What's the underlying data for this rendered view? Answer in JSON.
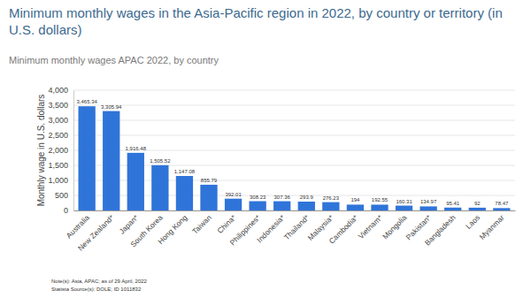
{
  "chart_data": {
    "type": "bar",
    "title": "Minimum monthly wages in the Asia-Pacific region in 2022, by country or territory (in U.S. dollars)",
    "subtitle": "Minimum monthly wages APAC 2022, by country",
    "y_label": "Monthly wage in U.S. dollars",
    "annotations": [
      "Note(s): Asia, APAC; as of 29 April, 2022",
      "Statista Source(s): DOLE; ID 1011832"
    ],
    "categories": [
      "Australia",
      "New Zealand*",
      "Japan*",
      "South Korea",
      "Hong Kong",
      "Taiwan",
      "China*",
      "Philippines*",
      "Indonesia*",
      "Thailand*",
      "Malaysia*",
      "Cambodia*",
      "Vietnam*",
      "Mongolia",
      "Pakistan*",
      "Bangladesh",
      "Laos",
      "Myanmar"
    ],
    "values": [
      3465.34,
      3305.94,
      1916.48,
      1505.52,
      1147.08,
      855.79,
      392.01,
      308.23,
      307.36,
      293.9,
      276.23,
      194,
      192.55,
      160.31,
      134.97,
      95.41,
      92,
      78.47
    ],
    "value_labels": [
      "3,465.34",
      "3,305.94",
      "1,916.48",
      "1,505.52",
      "1,147.08",
      "855.79",
      "392.01",
      "308.23",
      "307.36",
      "293.9",
      "276.23",
      "194",
      "192.55",
      "160.31",
      "134.97",
      "95.41",
      "92",
      "78.47"
    ],
    "color": "#2f74d9",
    "ylim": [
      0,
      4000
    ],
    "yticks": [
      0,
      500,
      {
        "value": 1000,
        "label": "1,000"
      },
      {
        "value": 1500,
        "label": "1,500"
      },
      {
        "value": 2000,
        "label": "2,000"
      },
      {
        "value": 2500,
        "label": "2,500"
      },
      {
        "value": 3000,
        "label": "3,000"
      },
      {
        "value": 3500,
        "label": "3,500"
      },
      {
        "value": 4000,
        "label": "4,000"
      }
    ],
    "grid": true,
    "data_labels": true
  }
}
